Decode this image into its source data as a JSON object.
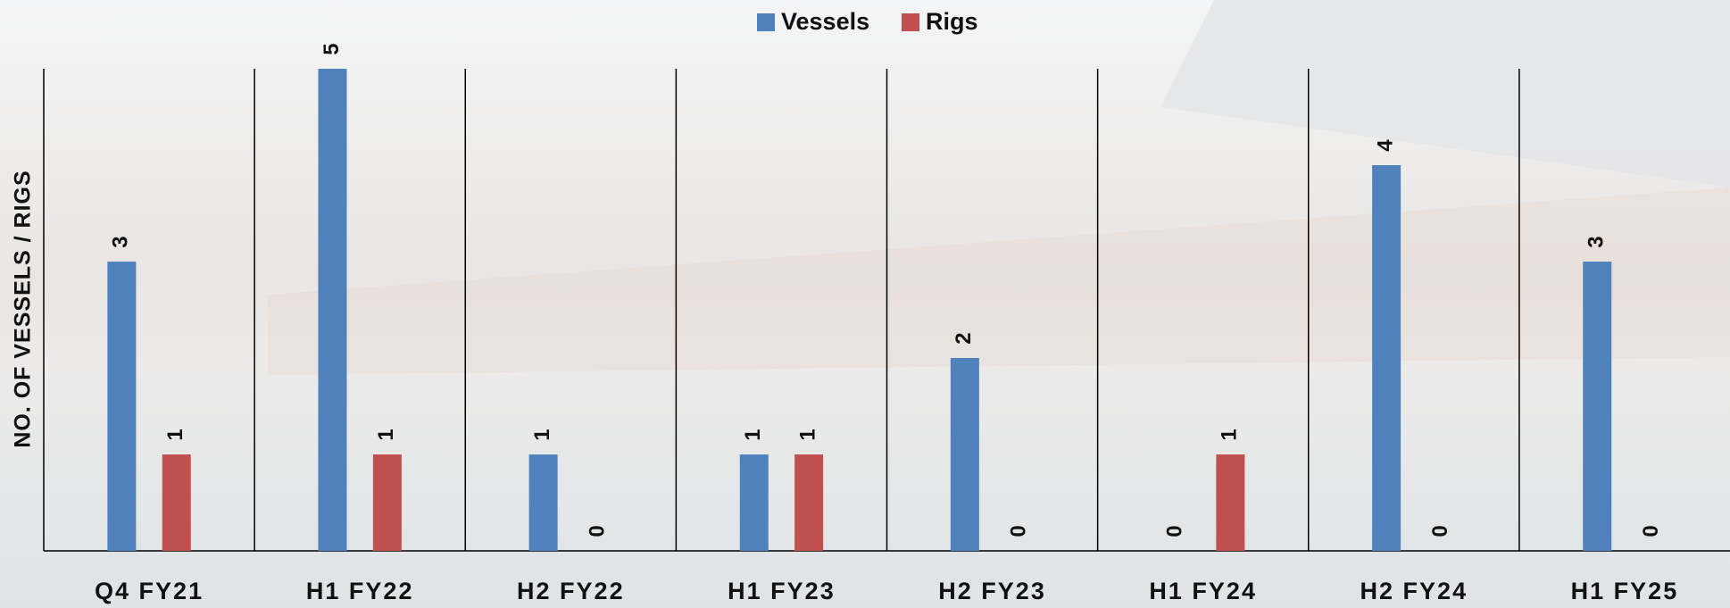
{
  "chart_data": {
    "type": "bar",
    "y_label": "NO. OF VESSELS / RIGS",
    "categories": [
      "Q4 FY21",
      "H1 FY22",
      "H2 FY22",
      "H1 FY23",
      "H2 FY23",
      "H1 FY24",
      "H2 FY24",
      "H1 FY25"
    ],
    "series": [
      {
        "name": "Vessels",
        "color": "#4f81bd",
        "values": [
          3,
          5,
          1,
          1,
          2,
          0,
          4,
          3
        ]
      },
      {
        "name": "Rigs",
        "color": "#c0504d",
        "values": [
          1,
          1,
          0,
          1,
          0,
          1,
          0,
          0
        ]
      }
    ],
    "ylim": [
      0,
      5
    ],
    "data_labels": true
  }
}
